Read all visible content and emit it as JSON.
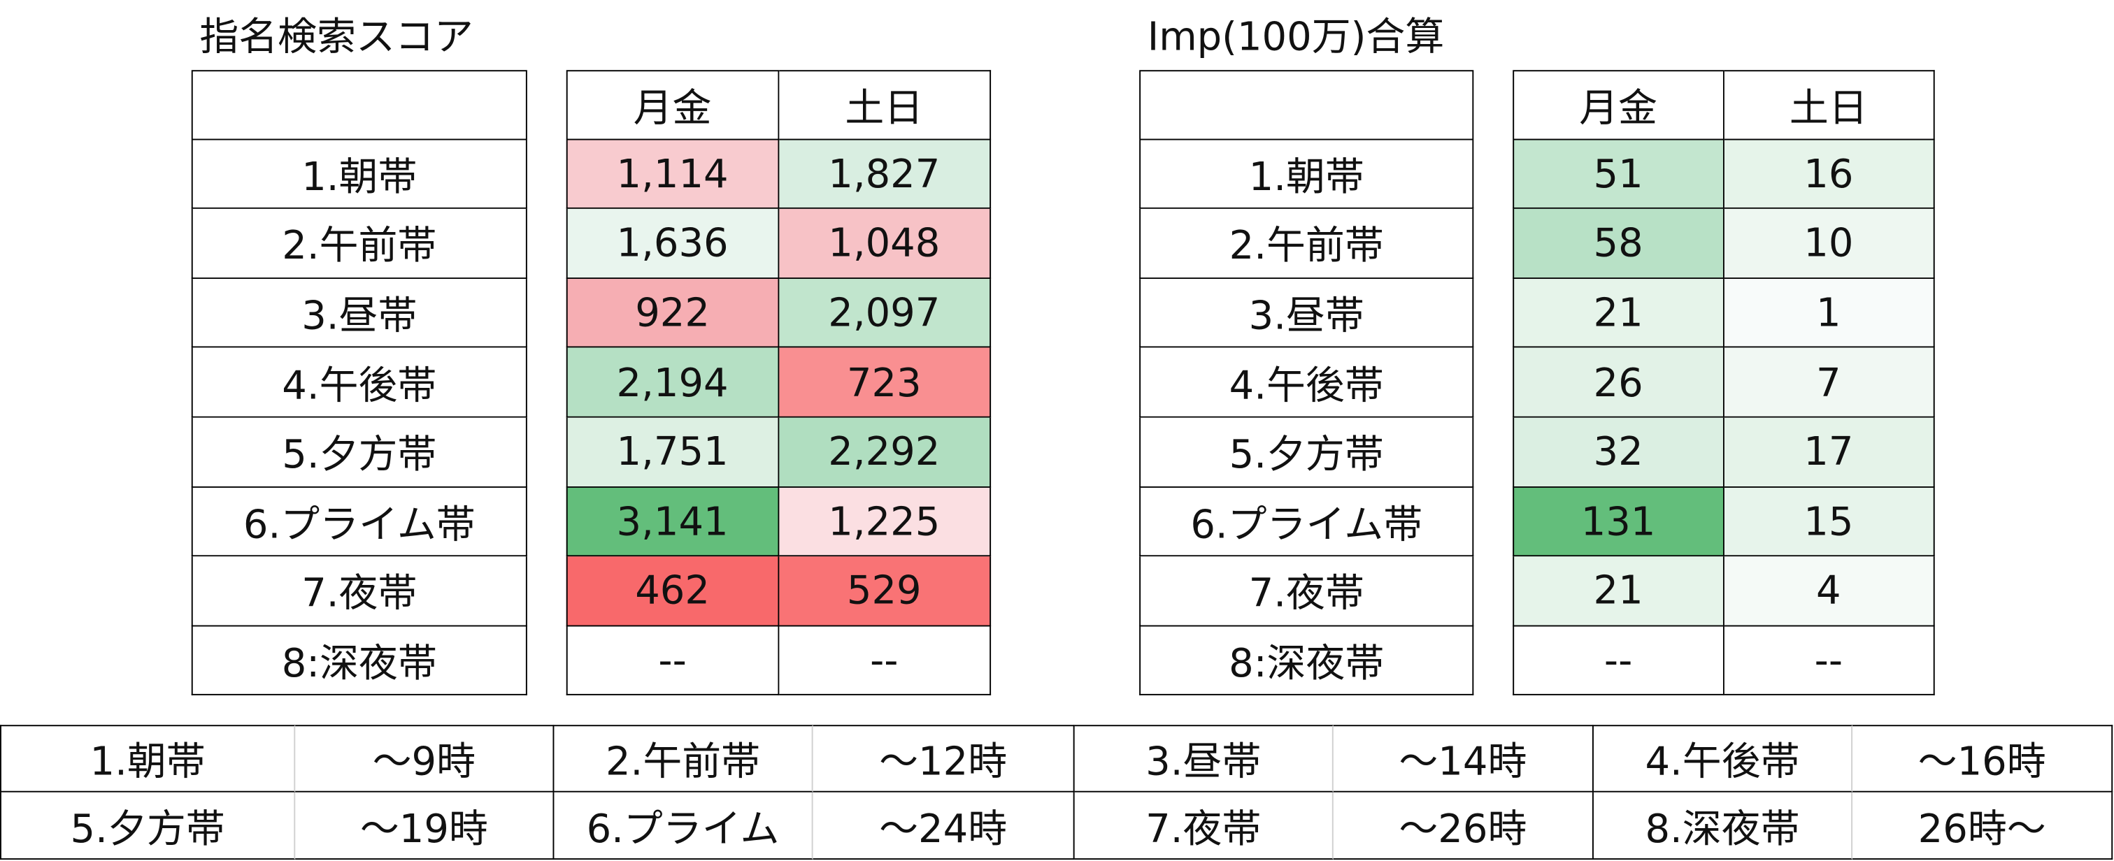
{
  "tables": [
    {
      "title": "指名検索スコア",
      "columns": [
        "月金",
        "土日"
      ],
      "rows": [
        {
          "label": "1.朝帯",
          "values": [
            "1,114",
            "1,827"
          ],
          "colors": [
            "#f8cbcf",
            "#d9eee1"
          ]
        },
        {
          "label": "2.午前帯",
          "values": [
            "1,636",
            "1,048"
          ],
          "colors": [
            "#e9f5ee",
            "#f7c2c6"
          ]
        },
        {
          "label": "3.昼帯",
          "values": [
            "922",
            "2,097"
          ],
          "colors": [
            "#f6aeb3",
            "#c1e5cd"
          ]
        },
        {
          "label": "4.午後帯",
          "values": [
            "2,194",
            "723"
          ],
          "colors": [
            "#b5e0c4",
            "#f98f91"
          ]
        },
        {
          "label": "5.夕方帯",
          "values": [
            "1,751",
            "2,292"
          ],
          "colors": [
            "#ddf0e3",
            "#b0dec0"
          ]
        },
        {
          "label": "6.プライム帯",
          "values": [
            "3,141",
            "1,225"
          ],
          "colors": [
            "#63be7b",
            "#fbdfe2"
          ]
        },
        {
          "label": "7.夜帯",
          "values": [
            "462",
            "529"
          ],
          "colors": [
            "#f8696b",
            "#f97375"
          ]
        },
        {
          "label": "8:深夜帯",
          "values": [
            "--",
            "--"
          ],
          "colors": [
            "#ffffff",
            "#ffffff"
          ]
        }
      ]
    },
    {
      "title": "Imp(100万)合算",
      "columns": [
        "月金",
        "土日"
      ],
      "rows": [
        {
          "label": "1.朝帯",
          "values": [
            "51",
            "16"
          ],
          "colors": [
            "#c3e6cf",
            "#e6f4ea"
          ]
        },
        {
          "label": "2.午前帯",
          "values": [
            "58",
            "10"
          ],
          "colors": [
            "#b8e1c6",
            "#eef7f1"
          ]
        },
        {
          "label": "3.昼帯",
          "values": [
            "21",
            "1"
          ],
          "colors": [
            "#e6f4ea",
            "#f8fbfa"
          ]
        },
        {
          "label": "4.午後帯",
          "values": [
            "26",
            "7"
          ],
          "colors": [
            "#e2f2e7",
            "#f1f8f3"
          ]
        },
        {
          "label": "5.夕方帯",
          "values": [
            "32",
            "17"
          ],
          "colors": [
            "#dbefe2",
            "#e5f3e9"
          ]
        },
        {
          "label": "6.プライム帯",
          "values": [
            "131",
            "15"
          ],
          "colors": [
            "#63be7b",
            "#e7f4eb"
          ]
        },
        {
          "label": "7.夜帯",
          "values": [
            "21",
            "4"
          ],
          "colors": [
            "#e6f4ea",
            "#f5faf7"
          ]
        },
        {
          "label": "8:深夜帯",
          "values": [
            "--",
            "--"
          ],
          "colors": [
            "#ffffff",
            "#ffffff"
          ]
        }
      ]
    }
  ],
  "legend": {
    "rows": [
      [
        {
          "band": "1.朝帯",
          "time": "～9時"
        },
        {
          "band": "2.午前帯",
          "time": "～12時"
        },
        {
          "band": "3.昼帯",
          "time": "～14時"
        },
        {
          "band": "4.午後帯",
          "time": "～16時"
        }
      ],
      [
        {
          "band": "5.夕方帯",
          "time": "～19時"
        },
        {
          "band": "6.プライム",
          "time": "～24時"
        },
        {
          "band": "7.夜帯",
          "time": "～26時"
        },
        {
          "band": "8.深夜帯",
          "time": "26時～"
        }
      ]
    ]
  }
}
